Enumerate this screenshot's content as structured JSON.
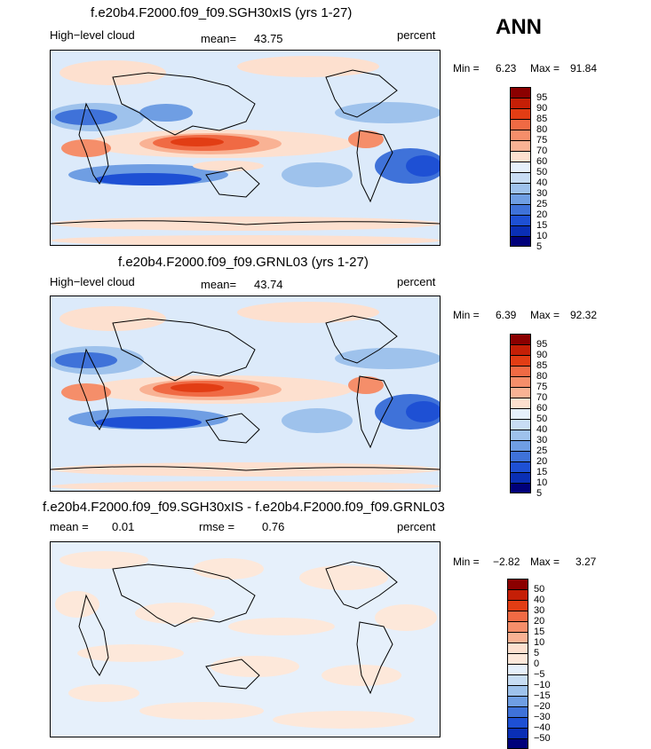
{
  "season": "ANN",
  "panels": [
    {
      "title": "f.e20b4.F2000.f09_f09.SGH30xIS (yrs 1-27)",
      "left_label": "High−level cloud",
      "mean_label": "mean=",
      "mean_value": "43.75",
      "units": "percent",
      "min_label": "Min =",
      "min_value": "6.23",
      "max_label": "Max =",
      "max_value": "91.84",
      "levels": [
        "95",
        "90",
        "85",
        "80",
        "75",
        "70",
        "60",
        "50",
        "40",
        "30",
        "25",
        "20",
        "15",
        "10",
        "5"
      ],
      "colors": [
        "#8b0000",
        "#c51f06",
        "#e23d14",
        "#f06a44",
        "#f58e6a",
        "#f9b294",
        "#fde0cf",
        "#e6f0fb",
        "#c8ddf4",
        "#9ec2ec",
        "#6f9ee3",
        "#3f72d9",
        "#1e50d4",
        "#0a2fb5",
        "#00007a"
      ]
    },
    {
      "title": "f.e20b4.F2000.f09_f09.GRNL03 (yrs 1-27)",
      "left_label": "High−level cloud",
      "mean_label": "mean=",
      "mean_value": "43.74",
      "units": "percent",
      "min_label": "Min =",
      "min_value": "6.39",
      "max_label": "Max =",
      "max_value": "92.32",
      "levels": [
        "95",
        "90",
        "85",
        "80",
        "75",
        "70",
        "60",
        "50",
        "40",
        "30",
        "25",
        "20",
        "15",
        "10",
        "5"
      ],
      "colors": [
        "#8b0000",
        "#c51f06",
        "#e23d14",
        "#f06a44",
        "#f58e6a",
        "#f9b294",
        "#fde0cf",
        "#e6f0fb",
        "#c8ddf4",
        "#9ec2ec",
        "#6f9ee3",
        "#3f72d9",
        "#1e50d4",
        "#0a2fb5",
        "#00007a"
      ]
    },
    {
      "title": "f.e20b4.F2000.f09_f09.SGH30xIS - f.e20b4.F2000.f09_f09.GRNL03",
      "mean_label": "mean =",
      "mean_value": "0.01",
      "rmse_label": "rmse =",
      "rmse_value": "0.76",
      "units": "percent",
      "min_label": "Min =",
      "min_value": "−2.82",
      "max_label": "Max =",
      "max_value": "3.27",
      "levels": [
        "50",
        "40",
        "30",
        "20",
        "15",
        "10",
        "5",
        "0",
        "−5",
        "−10",
        "−15",
        "−20",
        "−30",
        "−40",
        "−50"
      ],
      "colors": [
        "#8b0000",
        "#c51f06",
        "#e23d14",
        "#f06a44",
        "#f58e6a",
        "#f9b294",
        "#fde0cf",
        "#fde8da",
        "#e6f0fb",
        "#c8ddf4",
        "#9ec2ec",
        "#6f9ee3",
        "#3f72d9",
        "#1e50d4",
        "#0a2fb5",
        "#00007a"
      ]
    }
  ],
  "chart_data": [
    {
      "type": "heatmap",
      "title": "f.e20b4.F2000.f09_f09.SGH30xIS (yrs 1-27)",
      "variable": "High-level cloud",
      "units": "percent",
      "mean": 43.75,
      "min": 6.23,
      "max": 91.84,
      "contour_levels": [
        5,
        10,
        15,
        20,
        25,
        30,
        40,
        50,
        60,
        70,
        75,
        80,
        85,
        90,
        95
      ]
    },
    {
      "type": "heatmap",
      "title": "f.e20b4.F2000.f09_f09.GRNL03 (yrs 1-27)",
      "variable": "High-level cloud",
      "units": "percent",
      "mean": 43.74,
      "min": 6.39,
      "max": 92.32,
      "contour_levels": [
        5,
        10,
        15,
        20,
        25,
        30,
        40,
        50,
        60,
        70,
        75,
        80,
        85,
        90,
        95
      ]
    },
    {
      "type": "heatmap",
      "title": "f.e20b4.F2000.f09_f09.SGH30xIS - f.e20b4.F2000.f09_f09.GRNL03",
      "units": "percent",
      "mean": 0.01,
      "rmse": 0.76,
      "min": -2.82,
      "max": 3.27,
      "contour_levels": [
        -50,
        -40,
        -30,
        -20,
        -15,
        -10,
        -5,
        0,
        5,
        10,
        15,
        20,
        30,
        40,
        50
      ]
    }
  ]
}
